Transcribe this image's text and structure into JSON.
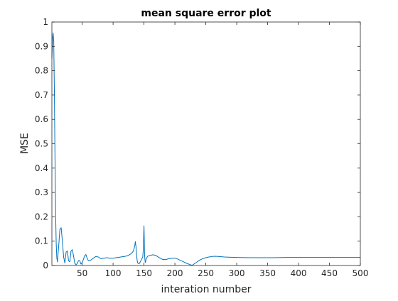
{
  "chart_data": {
    "type": "line",
    "title": "mean square error plot",
    "xlabel": "interation number",
    "ylabel": "MSE",
    "xlim": [
      1,
      500
    ],
    "ylim": [
      0,
      1
    ],
    "xticks": [
      50,
      100,
      150,
      200,
      250,
      300,
      350,
      400,
      450,
      500
    ],
    "yticks": [
      0,
      0.1,
      0.2,
      0.3,
      0.4,
      0.5,
      0.6,
      0.7,
      0.8,
      0.9,
      1
    ],
    "ytick_labels": [
      "0",
      "0.1",
      "0.2",
      "0.3",
      "0.4",
      "0.5",
      "0.6",
      "0.7",
      "0.8",
      "0.9",
      "1"
    ],
    "grid": false,
    "line_color": "#0072BD",
    "series": [
      {
        "x": [
          1,
          2,
          3,
          4,
          5,
          6,
          7,
          8,
          9,
          10,
          12,
          14,
          16,
          18,
          20,
          22,
          24,
          26,
          28,
          30,
          32,
          34,
          36,
          38,
          40,
          42,
          44,
          46,
          48,
          50,
          52,
          54,
          56,
          58,
          60,
          64,
          68,
          72,
          76,
          80,
          85,
          90,
          95,
          100,
          105,
          110,
          115,
          120,
          125,
          130,
          133,
          135,
          136,
          137,
          138,
          139,
          140,
          142,
          144,
          146,
          148,
          149,
          150,
          151,
          152,
          154,
          156,
          160,
          165,
          170,
          175,
          180,
          185,
          190,
          195,
          200,
          205,
          210,
          215,
          220,
          225,
          228,
          232,
          236,
          240,
          245,
          250,
          255,
          260,
          265,
          270,
          275,
          280,
          290,
          300,
          320,
          340,
          360,
          380,
          400,
          420,
          440,
          460,
          480,
          500
        ],
        "y": [
          0.85,
          0.93,
          0.955,
          0.92,
          0.72,
          0.45,
          0.22,
          0.09,
          0.03,
          0.015,
          0.08,
          0.15,
          0.155,
          0.1,
          0.035,
          0.01,
          0.055,
          0.06,
          0.02,
          0.015,
          0.06,
          0.065,
          0.04,
          0.01,
          0.003,
          0.008,
          0.02,
          0.02,
          0.006,
          0.012,
          0.025,
          0.04,
          0.045,
          0.03,
          0.02,
          0.022,
          0.03,
          0.037,
          0.035,
          0.028,
          0.03,
          0.032,
          0.03,
          0.03,
          0.032,
          0.034,
          0.036,
          0.038,
          0.042,
          0.05,
          0.06,
          0.08,
          0.098,
          0.08,
          0.045,
          0.02,
          0.01,
          0.007,
          0.015,
          0.025,
          0.035,
          0.07,
          0.163,
          0.04,
          0.012,
          0.03,
          0.038,
          0.042,
          0.044,
          0.04,
          0.032,
          0.025,
          0.024,
          0.028,
          0.03,
          0.03,
          0.026,
          0.02,
          0.014,
          0.008,
          0.003,
          0.001,
          0.008,
          0.015,
          0.022,
          0.028,
          0.032,
          0.035,
          0.037,
          0.038,
          0.037,
          0.036,
          0.035,
          0.034,
          0.033,
          0.032,
          0.032,
          0.032,
          0.033,
          0.033,
          0.033,
          0.033,
          0.033,
          0.033,
          0.033
        ]
      }
    ]
  }
}
